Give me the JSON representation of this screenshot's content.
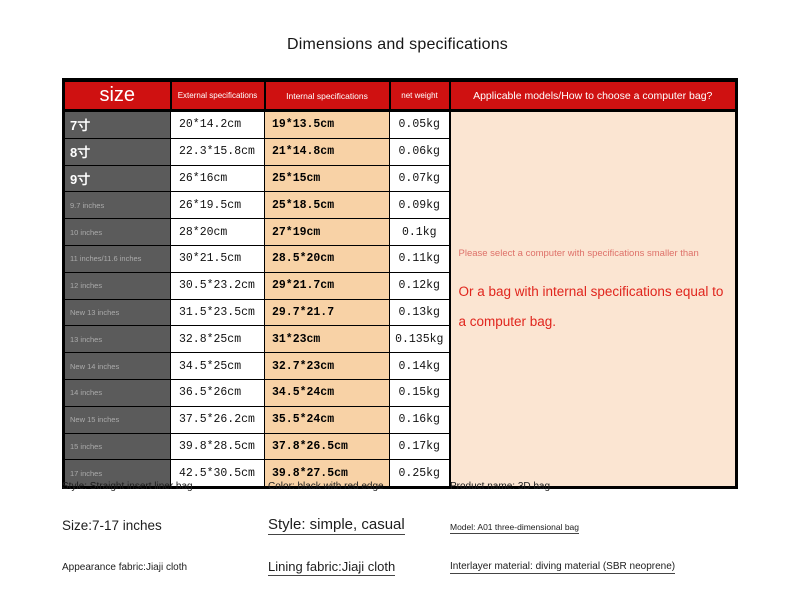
{
  "title": "Dimensions and specifications",
  "table": {
    "headers": [
      "size",
      "External specifications",
      "Internal specifications",
      "net weight",
      "Applicable models/How to choose a computer bag?"
    ],
    "rows": [
      {
        "size": "7寸",
        "big": true,
        "external": "20*14.2cm",
        "internal": "19*13.5cm",
        "weight": "0.05kg"
      },
      {
        "size": "8寸",
        "big": true,
        "external": "22.3*15.8cm",
        "internal": "21*14.8cm",
        "weight": "0.06kg"
      },
      {
        "size": "9寸",
        "big": true,
        "external": "26*16cm",
        "internal": "25*15cm",
        "weight": "0.07kg"
      },
      {
        "size": "9.7 inches",
        "big": false,
        "external": "26*19.5cm",
        "internal": "25*18.5cm",
        "weight": "0.09kg"
      },
      {
        "size": "10 inches",
        "big": false,
        "external": "28*20cm",
        "internal": "27*19cm",
        "weight": "0.1kg"
      },
      {
        "size": "11 inches/11.6 inches",
        "big": false,
        "external": "30*21.5cm",
        "internal": "28.5*20cm",
        "weight": "0.11kg"
      },
      {
        "size": "12 inches",
        "big": false,
        "external": "30.5*23.2cm",
        "internal": "29*21.7cm",
        "weight": "0.12kg"
      },
      {
        "size": "New 13 inches",
        "big": false,
        "external": "31.5*23.5cm",
        "internal": "29.7*21.7",
        "weight": "0.13kg"
      },
      {
        "size": "13 inches",
        "big": false,
        "external": "32.8*25cm",
        "internal": "31*23cm",
        "weight": "0.135kg"
      },
      {
        "size": "New 14 inches",
        "big": false,
        "external": "34.5*25cm",
        "internal": "32.7*23cm",
        "weight": "0.14kg"
      },
      {
        "size": "14 inches",
        "big": false,
        "external": "36.5*26cm",
        "internal": "34.5*24cm",
        "weight": "0.15kg"
      },
      {
        "size": "New 15 inches",
        "big": false,
        "external": "37.5*26.2cm",
        "internal": "35.5*24cm",
        "weight": "0.16kg"
      },
      {
        "size": "15 inches",
        "big": false,
        "external": "39.8*28.5cm",
        "internal": "37.8*26.5cm",
        "weight": "0.17kg"
      },
      {
        "size": "17 inches",
        "big": false,
        "external": "42.5*30.5cm",
        "internal": "39.8*27.5cm",
        "weight": "0.25kg"
      }
    ],
    "notice": {
      "line1": "Please select a computer with specifications smaller than",
      "line2": "Or a bag with internal specifications equal to",
      "line3": "a computer bag."
    }
  },
  "footer": {
    "rows": [
      [
        "Style: Straight insert liner bag",
        "Color: black with red edge",
        "Product name: 3D bag"
      ],
      [
        "Size:7-17 inches",
        "Style: simple, casual",
        "Model: A01 three-dimensional bag"
      ],
      [
        "Appearance fabric:Jiaji cloth",
        "Lining fabric:Jiaji cloth",
        "Interlayer material: diving material (SBR neoprene)"
      ]
    ]
  },
  "colors": {
    "header_red": "#cf1111",
    "size_col_bg": "#5b5b5b",
    "size_col_text": "#ababab",
    "internal_bg": "#f8d2a6",
    "panel_bg": "#fbe5d2",
    "notice_red": "#e0251d",
    "notice_salmon": "#de7169",
    "border": "#000000"
  }
}
